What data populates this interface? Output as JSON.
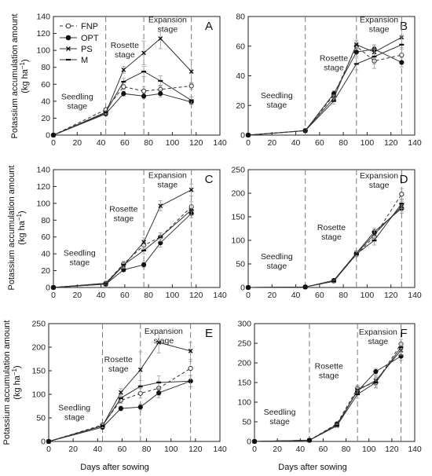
{
  "figure": {
    "ylabel_line1": "Potassium accumulation amount",
    "ylabel_line2": "(kg ha",
    "ylabel_sup": "−1",
    "ylabel_close": ")",
    "xlabel": "Days after sowing",
    "colors": {
      "axis": "#222222",
      "line": "#333333",
      "divider": "#7a7a7a",
      "error": "#999999"
    }
  },
  "legend": {
    "entries": [
      {
        "series": "FNP",
        "label": "FNP"
      },
      {
        "series": "OPT",
        "label": "OPT"
      },
      {
        "series": "PS",
        "label": "PS"
      },
      {
        "series": "M",
        "label": "M"
      }
    ]
  },
  "chart_data": [
    {
      "panel": "A",
      "type": "line",
      "xlim": [
        0,
        140
      ],
      "xticks": [
        0,
        20,
        40,
        60,
        80,
        100,
        120,
        140
      ],
      "ylim": [
        0,
        140
      ],
      "yticks": [
        0,
        20,
        40,
        60,
        80,
        100,
        120,
        140
      ],
      "stage_boundaries": [
        44,
        76,
        116
      ],
      "stages": [
        {
          "lines": [
            "Seedling",
            "stage"
          ],
          "x": 20,
          "y": 42
        },
        {
          "lines": [
            "Rosette",
            "stage"
          ],
          "x": 60,
          "y": 103
        },
        {
          "lines": [
            "Expansion",
            "stage"
          ],
          "x": 96,
          "y": 133
        }
      ],
      "x": [
        0,
        44,
        59,
        76,
        90,
        116
      ],
      "series": [
        {
          "name": "FNP",
          "style": "dashed",
          "marker": "open-circle",
          "values": [
            0,
            30,
            57,
            52,
            54,
            58
          ],
          "err": [
            0,
            2,
            3,
            5,
            5,
            4
          ]
        },
        {
          "name": "OPT",
          "style": "solid",
          "marker": "filled-circle",
          "values": [
            0,
            25,
            49,
            46,
            49,
            39
          ],
          "err": [
            0,
            2,
            3,
            3,
            4,
            3
          ]
        },
        {
          "name": "PS",
          "style": "solid",
          "marker": "x",
          "values": [
            0,
            26,
            77,
            97,
            114,
            75
          ],
          "err": [
            0,
            2,
            4,
            14,
            12,
            14
          ]
        },
        {
          "name": "M",
          "style": "solid",
          "marker": "dash",
          "values": [
            0,
            27,
            63,
            75,
            64,
            41
          ],
          "err": [
            0,
            2,
            4,
            6,
            6,
            4
          ]
        }
      ]
    },
    {
      "panel": "B",
      "type": "line",
      "xlim": [
        0,
        140
      ],
      "xticks": [
        0,
        20,
        40,
        60,
        80,
        100,
        120,
        140
      ],
      "ylim": [
        0,
        80
      ],
      "yticks": [
        0,
        20,
        40,
        60,
        80
      ],
      "stage_boundaries": [
        48,
        91,
        129
      ],
      "stages": [
        {
          "lines": [
            "Seedling",
            "stage"
          ],
          "x": 24,
          "y": 25
        },
        {
          "lines": [
            "Rosette",
            "stage"
          ],
          "x": 72,
          "y": 50
        },
        {
          "lines": [
            "Expansion",
            "stage"
          ],
          "x": 110,
          "y": 76
        }
      ],
      "x": [
        0,
        48,
        72,
        91,
        106,
        129
      ],
      "series": [
        {
          "name": "FNP",
          "style": "dashed",
          "marker": "open-circle",
          "values": [
            0,
            3,
            27,
            60,
            50,
            54
          ],
          "err": [
            0,
            0.5,
            2,
            3,
            5,
            5
          ]
        },
        {
          "name": "OPT",
          "style": "solid",
          "marker": "filled-circle",
          "values": [
            0,
            3,
            28,
            56,
            58,
            49
          ],
          "err": [
            0,
            0.5,
            2,
            3,
            3,
            3
          ]
        },
        {
          "name": "PS",
          "style": "solid",
          "marker": "x",
          "values": [
            0,
            3,
            25,
            61,
            56,
            66
          ],
          "err": [
            0,
            0.5,
            2,
            3,
            4,
            8
          ]
        },
        {
          "name": "M",
          "style": "solid",
          "marker": "dash",
          "values": [
            0,
            3,
            23,
            48,
            53,
            61
          ],
          "err": [
            0,
            0.5,
            2,
            4,
            5,
            6
          ]
        }
      ]
    },
    {
      "panel": "C",
      "type": "line",
      "xlim": [
        0,
        140
      ],
      "xticks": [
        0,
        20,
        40,
        60,
        80,
        100,
        120,
        140
      ],
      "ylim": [
        0,
        140
      ],
      "yticks": [
        0,
        20,
        40,
        60,
        80,
        100,
        120,
        140
      ],
      "stage_boundaries": [
        44,
        76,
        116
      ],
      "stages": [
        {
          "lines": [
            "Seedling",
            "stage"
          ],
          "x": 22,
          "y": 38
        },
        {
          "lines": [
            "Rosette",
            "stage"
          ],
          "x": 59,
          "y": 90
        },
        {
          "lines": [
            "Expansion",
            "stage"
          ],
          "x": 96,
          "y": 130
        }
      ],
      "x": [
        0,
        44,
        59,
        76,
        90,
        116
      ],
      "series": [
        {
          "name": "FNP",
          "style": "dashed",
          "marker": "open-circle",
          "values": [
            0,
            5,
            28,
            50,
            60,
            96
          ],
          "err": [
            0,
            1,
            3,
            4,
            5,
            6
          ]
        },
        {
          "name": "OPT",
          "style": "solid",
          "marker": "filled-circle",
          "values": [
            0,
            4,
            21,
            27,
            53,
            88
          ],
          "err": [
            0,
            1,
            2,
            3,
            5,
            5
          ]
        },
        {
          "name": "PS",
          "style": "solid",
          "marker": "x",
          "values": [
            0,
            4,
            26,
            54,
            97,
            116
          ],
          "err": [
            0,
            1,
            3,
            5,
            6,
            7
          ]
        },
        {
          "name": "M",
          "style": "solid",
          "marker": "dash",
          "values": [
            0,
            5,
            27,
            44,
            60,
            92
          ],
          "err": [
            0,
            1,
            3,
            4,
            5,
            6
          ]
        }
      ]
    },
    {
      "panel": "D",
      "type": "line",
      "xlim": [
        0,
        140
      ],
      "xticks": [
        0,
        20,
        40,
        60,
        80,
        100,
        120,
        140
      ],
      "ylim": [
        0,
        250
      ],
      "yticks": [
        0,
        50,
        100,
        150,
        200,
        250
      ],
      "stage_boundaries": [
        48,
        91,
        129
      ],
      "stages": [
        {
          "lines": [
            "Seedling",
            "stage"
          ],
          "x": 24,
          "y": 60
        },
        {
          "lines": [
            "Rosette",
            "stage"
          ],
          "x": 70,
          "y": 122
        },
        {
          "lines": [
            "Expansion",
            "stage"
          ],
          "x": 110,
          "y": 232
        }
      ],
      "x": [
        0,
        48,
        72,
        91,
        106,
        129
      ],
      "series": [
        {
          "name": "FNP",
          "style": "dashed",
          "marker": "open-circle",
          "values": [
            0,
            1,
            14,
            70,
            108,
            198
          ],
          "err": [
            0,
            0.5,
            2,
            5,
            10,
            12
          ]
        },
        {
          "name": "OPT",
          "style": "solid",
          "marker": "filled-circle",
          "values": [
            0,
            1,
            15,
            73,
            118,
            168
          ],
          "err": [
            0,
            0.5,
            2,
            5,
            8,
            10
          ]
        },
        {
          "name": "PS",
          "style": "solid",
          "marker": "x",
          "values": [
            0,
            1,
            14,
            72,
            113,
            172
          ],
          "err": [
            0,
            0.5,
            2,
            5,
            8,
            10
          ]
        },
        {
          "name": "M",
          "style": "solid",
          "marker": "dash",
          "values": [
            0,
            1,
            13,
            71,
            100,
            178
          ],
          "err": [
            0,
            0.5,
            2,
            5,
            10,
            10
          ]
        }
      ]
    },
    {
      "panel": "E",
      "type": "line",
      "xlim": [
        0,
        140
      ],
      "xticks": [
        0,
        20,
        40,
        60,
        80,
        100,
        120,
        140
      ],
      "ylim": [
        0,
        250
      ],
      "yticks": [
        0,
        50,
        100,
        150,
        200,
        250
      ],
      "stage_boundaries": [
        44,
        75,
        116
      ],
      "stages": [
        {
          "lines": [
            "Seedling",
            "stage"
          ],
          "x": 21,
          "y": 66
        },
        {
          "lines": [
            "Rosette",
            "stage"
          ],
          "x": 57,
          "y": 168
        },
        {
          "lines": [
            "Expansion",
            "stage"
          ],
          "x": 94,
          "y": 228
        }
      ],
      "x": [
        0,
        44,
        59,
        75,
        90,
        116
      ],
      "series": [
        {
          "name": "FNP",
          "style": "dashed",
          "marker": "open-circle",
          "values": [
            0,
            35,
            87,
            102,
            113,
            155
          ],
          "err": [
            0,
            4,
            6,
            10,
            15,
            15
          ]
        },
        {
          "name": "OPT",
          "style": "solid",
          "marker": "filled-circle",
          "values": [
            0,
            30,
            70,
            73,
            103,
            128
          ],
          "err": [
            0,
            3,
            5,
            6,
            10,
            12
          ]
        },
        {
          "name": "PS",
          "style": "solid",
          "marker": "x",
          "values": [
            0,
            33,
            104,
            152,
            210,
            192
          ],
          "err": [
            0,
            4,
            8,
            38,
            22,
            18
          ]
        },
        {
          "name": "M",
          "style": "solid",
          "marker": "dash",
          "values": [
            0,
            33,
            92,
            117,
            125,
            128
          ],
          "err": [
            0,
            4,
            7,
            12,
            14,
            12
          ]
        }
      ]
    },
    {
      "panel": "F",
      "type": "line",
      "xlim": [
        0,
        140
      ],
      "xticks": [
        0,
        20,
        40,
        60,
        80,
        100,
        120,
        140
      ],
      "ylim": [
        0,
        300
      ],
      "yticks": [
        0,
        50,
        100,
        150,
        200,
        250,
        300
      ],
      "stage_boundaries": [
        48,
        90,
        128
      ],
      "stages": [
        {
          "lines": [
            "Seedling",
            "stage"
          ],
          "x": 22,
          "y": 68
        },
        {
          "lines": [
            "Rosette",
            "stage"
          ],
          "x": 65,
          "y": 185
        },
        {
          "lines": [
            "Expansion",
            "stage"
          ],
          "x": 108,
          "y": 272
        }
      ],
      "x": [
        0,
        48,
        72,
        90,
        106,
        128
      ],
      "series": [
        {
          "name": "FNP",
          "style": "dashed",
          "marker": "open-circle",
          "values": [
            0,
            3,
            45,
            135,
            150,
            248
          ],
          "err": [
            0,
            0.5,
            4,
            8,
            12,
            12
          ]
        },
        {
          "name": "OPT",
          "style": "solid",
          "marker": "filled-circle",
          "values": [
            0,
            3,
            43,
            128,
            178,
            217
          ],
          "err": [
            0,
            0.5,
            4,
            8,
            8,
            10
          ]
        },
        {
          "name": "PS",
          "style": "solid",
          "marker": "x",
          "values": [
            0,
            3,
            40,
            130,
            155,
            232
          ],
          "err": [
            0,
            0.5,
            4,
            8,
            12,
            12
          ]
        },
        {
          "name": "M",
          "style": "solid",
          "marker": "dash",
          "values": [
            0,
            3,
            40,
            120,
            150,
            240
          ],
          "err": [
            0,
            0.5,
            4,
            10,
            14,
            12
          ]
        }
      ]
    }
  ]
}
